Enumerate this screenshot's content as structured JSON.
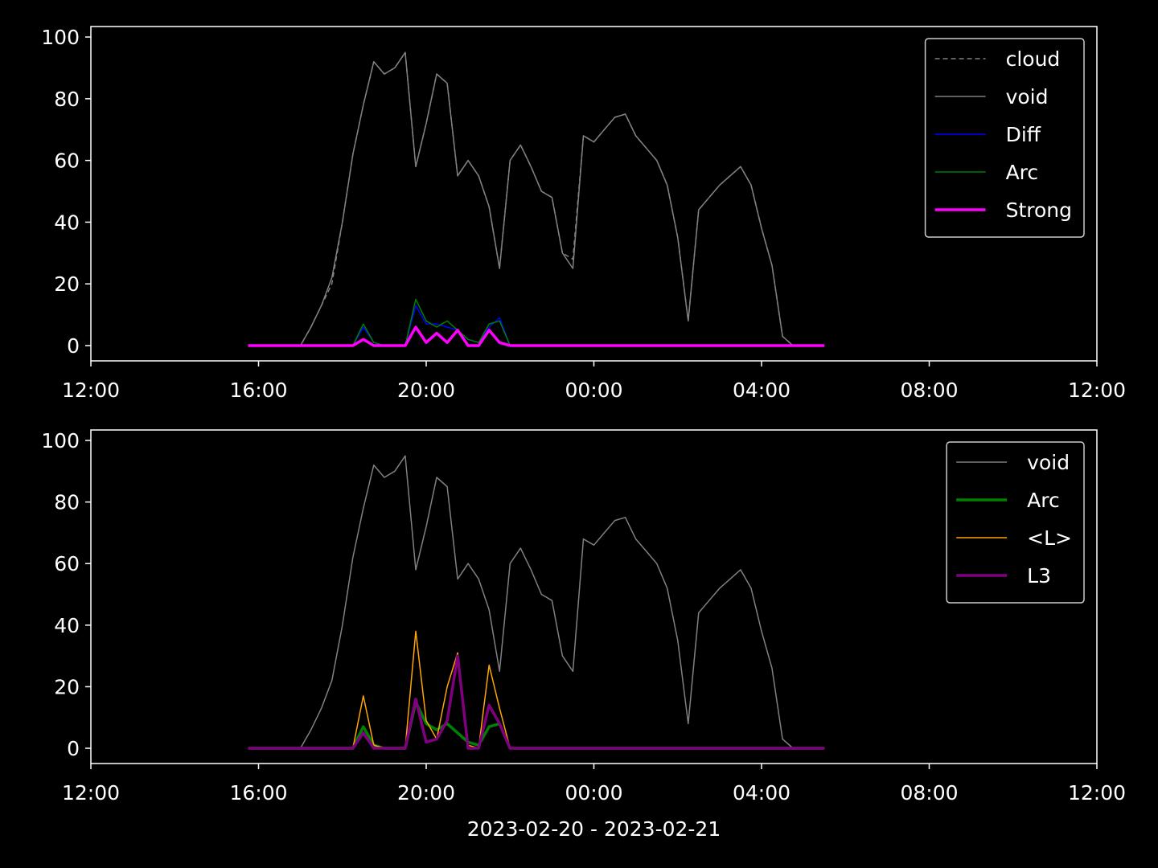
{
  "chart_data": [
    {
      "type": "line",
      "x": [
        3.75,
        4,
        4.25,
        4.5,
        4.75,
        5,
        5.25,
        5.5,
        5.75,
        6,
        6.25,
        6.5,
        6.75,
        7,
        7.25,
        7.5,
        7.75,
        8,
        8.25,
        8.5,
        8.75,
        9,
        9.25,
        9.5,
        9.75,
        10,
        10.25,
        10.5,
        10.75,
        11,
        11.25,
        11.5,
        11.75,
        12,
        12.25,
        12.5,
        12.75,
        13,
        13.25,
        13.5,
        13.75,
        14,
        14.25,
        14.5,
        14.75,
        15,
        15.25,
        15.5,
        15.75,
        16,
        16.25,
        16.5,
        16.75,
        17,
        17.25,
        17.5
      ],
      "series": [
        {
          "name": "cloud",
          "color": "#808080",
          "linestyle": "dashed",
          "linewidth": 1.5,
          "values": [
            0,
            0,
            0,
            0,
            0,
            0,
            6,
            13,
            20,
            40,
            62,
            78,
            92,
            88,
            90,
            95,
            58,
            72,
            88,
            85,
            55,
            60,
            55,
            45,
            25,
            60,
            65,
            58,
            50,
            48,
            30,
            28,
            68,
            66,
            70,
            74,
            75,
            68,
            64,
            60,
            52,
            35,
            8,
            44,
            48,
            52,
            55,
            58,
            52,
            38,
            26,
            3,
            0,
            0,
            0,
            0
          ]
        },
        {
          "name": "void",
          "color": "#808080",
          "linestyle": "solid",
          "linewidth": 1.5,
          "values": [
            0,
            0,
            0,
            0,
            0,
            0,
            6,
            13,
            22,
            40,
            62,
            78,
            92,
            88,
            90,
            95,
            58,
            72,
            88,
            85,
            55,
            60,
            55,
            45,
            25,
            60,
            65,
            58,
            50,
            48,
            30,
            25,
            68,
            66,
            70,
            74,
            75,
            68,
            64,
            60,
            52,
            35,
            8,
            44,
            48,
            52,
            55,
            58,
            52,
            38,
            26,
            3,
            0,
            0,
            0,
            0
          ]
        },
        {
          "name": "Diff",
          "color": "#0000ff",
          "linestyle": "solid",
          "linewidth": 1.5,
          "values": [
            0,
            0,
            0,
            0,
            0,
            0,
            0,
            0,
            0,
            0,
            0,
            6,
            1,
            0,
            0,
            0,
            13,
            7,
            7,
            6,
            5,
            2,
            1,
            6,
            9,
            0,
            0,
            0,
            0,
            0,
            0,
            0,
            0,
            0,
            0,
            0,
            0,
            0,
            0,
            0,
            0,
            0,
            0,
            0,
            0,
            0,
            0,
            0,
            0,
            0,
            0,
            0,
            0,
            0,
            0,
            0
          ]
        },
        {
          "name": "Arc",
          "color": "#008000",
          "linestyle": "solid",
          "linewidth": 1.5,
          "values": [
            0,
            0,
            0,
            0,
            0,
            0,
            0,
            0,
            0,
            0,
            0,
            7,
            1,
            0,
            0,
            0,
            15,
            8,
            6,
            8,
            5,
            2,
            1,
            7,
            8,
            0,
            0,
            0,
            0,
            0,
            0,
            0,
            0,
            0,
            0,
            0,
            0,
            0,
            0,
            0,
            0,
            0,
            0,
            0,
            0,
            0,
            0,
            0,
            0,
            0,
            0,
            0,
            0,
            0,
            0,
            0
          ]
        },
        {
          "name": "Strong",
          "color": "#ff00ff",
          "linestyle": "solid",
          "linewidth": 3.5,
          "values": [
            0,
            0,
            0,
            0,
            0,
            0,
            0,
            0,
            0,
            0,
            0,
            2,
            0,
            0,
            0,
            0,
            6,
            1,
            4,
            1,
            5,
            0,
            0,
            5,
            1,
            0,
            0,
            0,
            0,
            0,
            0,
            0,
            0,
            0,
            0,
            0,
            0,
            0,
            0,
            0,
            0,
            0,
            0,
            0,
            0,
            0,
            0,
            0,
            0,
            0,
            0,
            0,
            0,
            0,
            0,
            0
          ]
        }
      ],
      "xlim": [
        0,
        24
      ],
      "xticks": [
        {
          "value": 0,
          "label": "12:00"
        },
        {
          "value": 4,
          "label": "16:00"
        },
        {
          "value": 8,
          "label": "20:00"
        },
        {
          "value": 12,
          "label": "00:00"
        },
        {
          "value": 16,
          "label": "04:00"
        },
        {
          "value": 20,
          "label": "08:00"
        },
        {
          "value": 24,
          "label": "12:00"
        }
      ],
      "ylim": [
        -4.95,
        103.4
      ],
      "yticks": [
        0,
        20,
        40,
        60,
        80,
        100
      ],
      "legend": "upper right"
    },
    {
      "type": "line",
      "x": [
        3.75,
        4,
        4.25,
        4.5,
        4.75,
        5,
        5.25,
        5.5,
        5.75,
        6,
        6.25,
        6.5,
        6.75,
        7,
        7.25,
        7.5,
        7.75,
        8,
        8.25,
        8.5,
        8.75,
        9,
        9.25,
        9.5,
        9.75,
        10,
        10.25,
        10.5,
        10.75,
        11,
        11.25,
        11.5,
        11.75,
        12,
        12.25,
        12.5,
        12.75,
        13,
        13.25,
        13.5,
        13.75,
        14,
        14.25,
        14.5,
        14.75,
        15,
        15.25,
        15.5,
        15.75,
        16,
        16.25,
        16.5,
        16.75,
        17,
        17.25,
        17.5
      ],
      "series": [
        {
          "name": "void",
          "color": "#808080",
          "linestyle": "solid",
          "linewidth": 1.5,
          "values": [
            0,
            0,
            0,
            0,
            0,
            0,
            6,
            13,
            22,
            40,
            62,
            78,
            92,
            88,
            90,
            95,
            58,
            72,
            88,
            85,
            55,
            60,
            55,
            45,
            25,
            60,
            65,
            58,
            50,
            48,
            30,
            25,
            68,
            66,
            70,
            74,
            75,
            68,
            64,
            60,
            52,
            35,
            8,
            44,
            48,
            52,
            55,
            58,
            52,
            38,
            26,
            3,
            0,
            0,
            0,
            0
          ]
        },
        {
          "name": "Arc",
          "color": "#008000",
          "linestyle": "solid",
          "linewidth": 3.5,
          "values": [
            0,
            0,
            0,
            0,
            0,
            0,
            0,
            0,
            0,
            0,
            0,
            7,
            1,
            0,
            0,
            0,
            15,
            8,
            6,
            8,
            5,
            2,
            1,
            7,
            8,
            0,
            0,
            0,
            0,
            0,
            0,
            0,
            0,
            0,
            0,
            0,
            0,
            0,
            0,
            0,
            0,
            0,
            0,
            0,
            0,
            0,
            0,
            0,
            0,
            0,
            0,
            0,
            0,
            0,
            0,
            0
          ]
        },
        {
          "name": "<L>",
          "color": "#ffa500",
          "linestyle": "solid",
          "linewidth": 1.5,
          "values": [
            0,
            0,
            0,
            0,
            0,
            0,
            0,
            0,
            0,
            0,
            0,
            17,
            1,
            0,
            0,
            0,
            38,
            9,
            3,
            20,
            31,
            1,
            0,
            27,
            13,
            0,
            0,
            0,
            0,
            0,
            0,
            0,
            0,
            0,
            0,
            0,
            0,
            0,
            0,
            0,
            0,
            0,
            0,
            0,
            0,
            0,
            0,
            0,
            0,
            0,
            0,
            0,
            0,
            0,
            0,
            0
          ]
        },
        {
          "name": "L3",
          "color": "#800080",
          "linestyle": "solid",
          "linewidth": 3.5,
          "values": [
            0,
            0,
            0,
            0,
            0,
            0,
            0,
            0,
            0,
            0,
            0,
            5,
            0,
            0,
            0,
            0,
            16,
            2,
            3,
            9,
            30,
            0,
            0,
            14,
            8,
            0,
            0,
            0,
            0,
            0,
            0,
            0,
            0,
            0,
            0,
            0,
            0,
            0,
            0,
            0,
            0,
            0,
            0,
            0,
            0,
            0,
            0,
            0,
            0,
            0,
            0,
            0,
            0,
            0,
            0,
            0
          ]
        }
      ],
      "xlim": [
        0,
        24
      ],
      "xticks": [
        {
          "value": 0,
          "label": "12:00"
        },
        {
          "value": 4,
          "label": "16:00"
        },
        {
          "value": 8,
          "label": "20:00"
        },
        {
          "value": 12,
          "label": "00:00"
        },
        {
          "value": 16,
          "label": "04:00"
        },
        {
          "value": 20,
          "label": "08:00"
        },
        {
          "value": 24,
          "label": "12:00"
        }
      ],
      "ylim": [
        -4.95,
        103.4
      ],
      "yticks": [
        0,
        20,
        40,
        60,
        80,
        100
      ],
      "x_label": "2023-02-20 - 2023-02-21",
      "legend": "upper right"
    }
  ]
}
